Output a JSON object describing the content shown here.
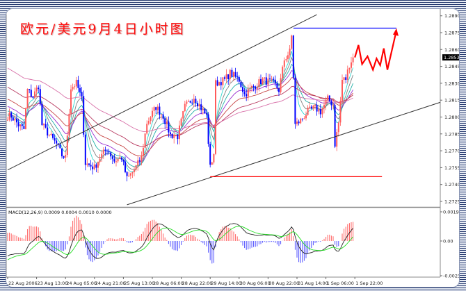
{
  "title": "欧元/美元9月4日小时图",
  "colors": {
    "bull": "#ff5a5a",
    "bear": "#0000ff",
    "current_price_bg": "#000000",
    "forecast": "#ff0000",
    "resistance": "#0000ff",
    "support": "#ff0000",
    "trendline": "#333333",
    "macd_line": "#222222",
    "signal_line": "#22dd22"
  },
  "chart_data": {
    "type": "candlestick",
    "current_price": "1.2853",
    "y_ticks": [
      "1.2890",
      "1.2875",
      "1.2860",
      "1.2845",
      "1.2830",
      "1.2815",
      "1.2800",
      "1.2785",
      "1.2770",
      "1.2755",
      "1.2740",
      "1.2725"
    ],
    "ylim": [
      1.2722,
      1.2893
    ],
    "x_ticks": [
      {
        "bar": 0,
        "label": "22 Aug 2006"
      },
      {
        "bar": 16,
        "label": "23 Aug 13:00"
      },
      {
        "bar": 32,
        "label": "24 Aug 05:00"
      },
      {
        "bar": 48,
        "label": "24 Aug 21:00"
      },
      {
        "bar": 64,
        "label": "25 Aug 13:00"
      },
      {
        "bar": 80,
        "label": "28 Aug 06:00"
      },
      {
        "bar": 96,
        "label": "28 Aug 22:00"
      },
      {
        "bar": 112,
        "label": "29 Aug 14:00"
      },
      {
        "bar": 128,
        "label": "30 Aug 06:00"
      },
      {
        "bar": 144,
        "label": "30 Aug 22:00"
      },
      {
        "bar": 160,
        "label": "31 Aug 14:00"
      },
      {
        "bar": 176,
        "label": "1 Sep 06:00"
      },
      {
        "bar": 192,
        "label": "1 Sep 22:00"
      }
    ],
    "close_path": [
      [
        0,
        1.2801
      ],
      [
        2,
        1.2801
      ],
      [
        6,
        1.2793
      ],
      [
        9,
        1.2789
      ],
      [
        11,
        1.2824
      ],
      [
        14,
        1.2818
      ],
      [
        17,
        1.2828
      ],
      [
        19,
        1.2793
      ],
      [
        23,
        1.2784
      ],
      [
        27,
        1.2776
      ],
      [
        30,
        1.2766
      ],
      [
        32,
        1.2764
      ],
      [
        35,
        1.2826
      ],
      [
        38,
        1.283
      ],
      [
        41,
        1.2816
      ],
      [
        43,
        1.2759
      ],
      [
        48,
        1.2755
      ],
      [
        51,
        1.2764
      ],
      [
        55,
        1.2772
      ],
      [
        59,
        1.2761
      ],
      [
        63,
        1.2764
      ],
      [
        66,
        1.2745
      ],
      [
        70,
        1.2753
      ],
      [
        74,
        1.2764
      ],
      [
        77,
        1.2795
      ],
      [
        82,
        1.2809
      ],
      [
        86,
        1.2801
      ],
      [
        90,
        1.2784
      ],
      [
        94,
        1.2783
      ],
      [
        98,
        1.2809
      ],
      [
        103,
        1.2818
      ],
      [
        107,
        1.2808
      ],
      [
        110,
        1.2801
      ],
      [
        112,
        1.2755
      ],
      [
        114,
        1.2768
      ],
      [
        115,
        1.283
      ],
      [
        120,
        1.2833
      ],
      [
        123,
        1.2839
      ],
      [
        128,
        1.2833
      ],
      [
        131,
        1.282
      ],
      [
        135,
        1.2826
      ],
      [
        141,
        1.2833
      ],
      [
        147,
        1.283
      ],
      [
        150,
        1.2824
      ],
      [
        153,
        1.2851
      ],
      [
        156,
        1.2858
      ],
      [
        157,
        1.2872
      ],
      [
        158,
        1.2836
      ],
      [
        159,
        1.2793
      ],
      [
        162,
        1.2797
      ],
      [
        166,
        1.2805
      ],
      [
        170,
        1.2808
      ],
      [
        173,
        1.2805
      ],
      [
        177,
        1.2816
      ],
      [
        180,
        1.2811
      ],
      [
        181,
        1.2776
      ],
      [
        183,
        1.2795
      ],
      [
        185,
        1.2833
      ],
      [
        187,
        1.2834
      ],
      [
        189,
        1.2847
      ],
      [
        191,
        1.2853
      ]
    ],
    "moving_averages": [
      5,
      8,
      13,
      21,
      34,
      55,
      89
    ],
    "annotations": {
      "upper_trendline": [
        [
          0,
          1.2753
        ],
        [
          171,
          1.2891
        ]
      ],
      "lower_trendline": [
        [
          66,
          1.2722
        ],
        [
          241,
          1.2814
        ]
      ],
      "support_line": {
        "price": 1.2747,
        "from_bar": 112,
        "to_bar": 207
      },
      "resistance_line": {
        "price": 1.2879,
        "from_bar": 158,
        "to_bar": 215
      },
      "forecast_zigzag": [
        [
          192,
          1.2853
        ],
        [
          194,
          1.2864
        ],
        [
          196,
          1.2847
        ],
        [
          199,
          1.2854
        ],
        [
          202,
          1.2842
        ],
        [
          204,
          1.2852
        ],
        [
          206,
          1.2846
        ],
        [
          208,
          1.2861
        ],
        [
          210,
          1.2842
        ],
        [
          215,
          1.2877
        ]
      ]
    },
    "macd": {
      "label": "MACD(12,26,9) 0.0009 0.0004 0.0010 0.0000",
      "y_ticks": [
        "0.0019",
        "0.00",
        "-0.0023"
      ],
      "ylim": [
        -0.0023,
        0.0019
      ]
    }
  }
}
